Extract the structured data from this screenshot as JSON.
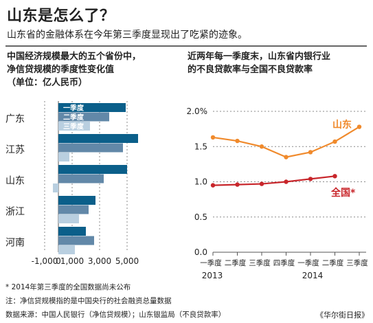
{
  "header": {
    "title": "山东是怎么了？",
    "subtitle": "山东省的金融体系在今年第三季度显现出了吃紧的迹象。"
  },
  "left_chart": {
    "title_lines": [
      "中国经济规模最大的五个省份中，",
      "净信贷规模的季度性变化值",
      "（单位：亿人民币）"
    ]
  },
  "right_chart": {
    "title_lines": [
      "近两年每一季度末，山东省内银行业",
      "的不良贷款率与全国不良贷款率"
    ]
  },
  "footnotes": {
    "note1": "* 2014年第三季度的全国数据尚未公布",
    "note2": "注：净信贷规模指的是中国央行的社会融资总量数据",
    "source": "数据来源：中国人民银行（净信贷规模）；山东银监局（不良贷款率）",
    "publisher": "《华尔街日报》"
  },
  "colors": {
    "q1": "#0b5f8a",
    "q2": "#6288a8",
    "q3": "#b9cfe0",
    "shandong": "#f08a2c",
    "national": "#c8262b",
    "grid": "#888888",
    "text": "#222222"
  },
  "chart_data": [
    {
      "type": "bar",
      "orientation": "horizontal",
      "categories": [
        "广东",
        "江苏",
        "山东",
        "浙江",
        "河南"
      ],
      "series": [
        {
          "name": "一季度",
          "values": [
            4900,
            5800,
            5000,
            2700,
            2000
          ]
        },
        {
          "name": "二季度",
          "values": [
            3700,
            4700,
            3300,
            2200,
            2600
          ]
        },
        {
          "name": "三季度",
          "values": [
            2300,
            800,
            -400,
            1500,
            1200
          ]
        }
      ],
      "x_ticks": [
        "-1,000",
        "0",
        "1,000",
        "3,000",
        "5,000"
      ],
      "x_tick_values": [
        -1000,
        0,
        1000,
        3000,
        5000
      ],
      "xlim": [
        -1000,
        6000
      ],
      "grid": true
    },
    {
      "type": "line",
      "x": [
        "一季度",
        "二季度",
        "三季度",
        "四季度",
        "一季度",
        "二季度",
        "三季度"
      ],
      "x_years": [
        "2013",
        "2014"
      ],
      "series": [
        {
          "name": "山东",
          "values": [
            1.63,
            1.58,
            1.5,
            1.35,
            1.42,
            1.57,
            1.78
          ]
        },
        {
          "name": "全国*",
          "values": [
            0.95,
            0.96,
            0.97,
            1.0,
            1.04,
            1.08,
            null
          ]
        }
      ],
      "y_ticks": [
        "2.0%",
        "1.5",
        "1.0",
        "0.5",
        "0.0"
      ],
      "y_tick_values": [
        2.0,
        1.5,
        1.0,
        0.5,
        0.0
      ],
      "ylim": [
        0,
        2.0
      ],
      "grid": true
    }
  ]
}
